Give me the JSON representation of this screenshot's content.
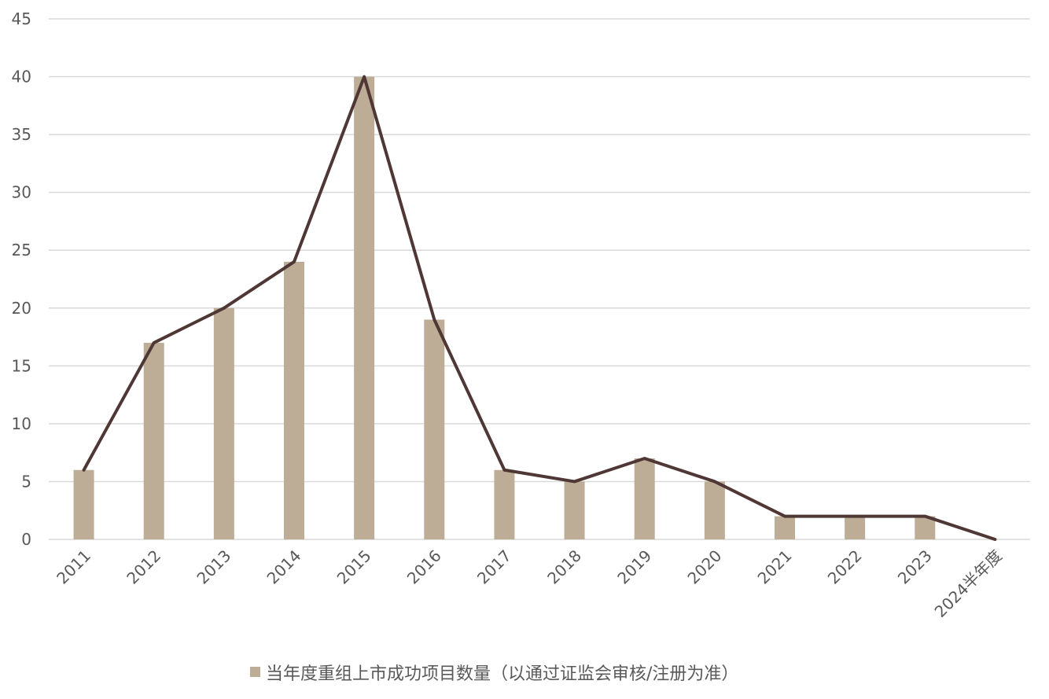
{
  "chart_data": {
    "type": "bar",
    "categories": [
      "2011",
      "2012",
      "2013",
      "2014",
      "2015",
      "2016",
      "2017",
      "2018",
      "2019",
      "2020",
      "2021",
      "2022",
      "2023",
      "2024半年度"
    ],
    "series": [
      {
        "name": "当年度重组上市成功项目数量（以通过证监会审核/注册为准）",
        "type": "bar",
        "values": [
          6,
          17,
          20,
          24,
          40,
          19,
          6,
          5,
          7,
          5,
          2,
          2,
          2,
          0
        ]
      },
      {
        "type": "line",
        "values": [
          6,
          17,
          20,
          24,
          40,
          19,
          6,
          5,
          7,
          5,
          2,
          2,
          2,
          0
        ]
      }
    ],
    "ylim": [
      0,
      45
    ],
    "yticks": [
      0,
      5,
      10,
      15,
      20,
      25,
      30,
      35,
      40,
      45
    ],
    "grid": true,
    "legend_position": "bottom",
    "colors": {
      "bar": "#BDAC96",
      "line": "#4E3734",
      "grid": "#D9D9D9",
      "tick_text": "#595959"
    }
  }
}
